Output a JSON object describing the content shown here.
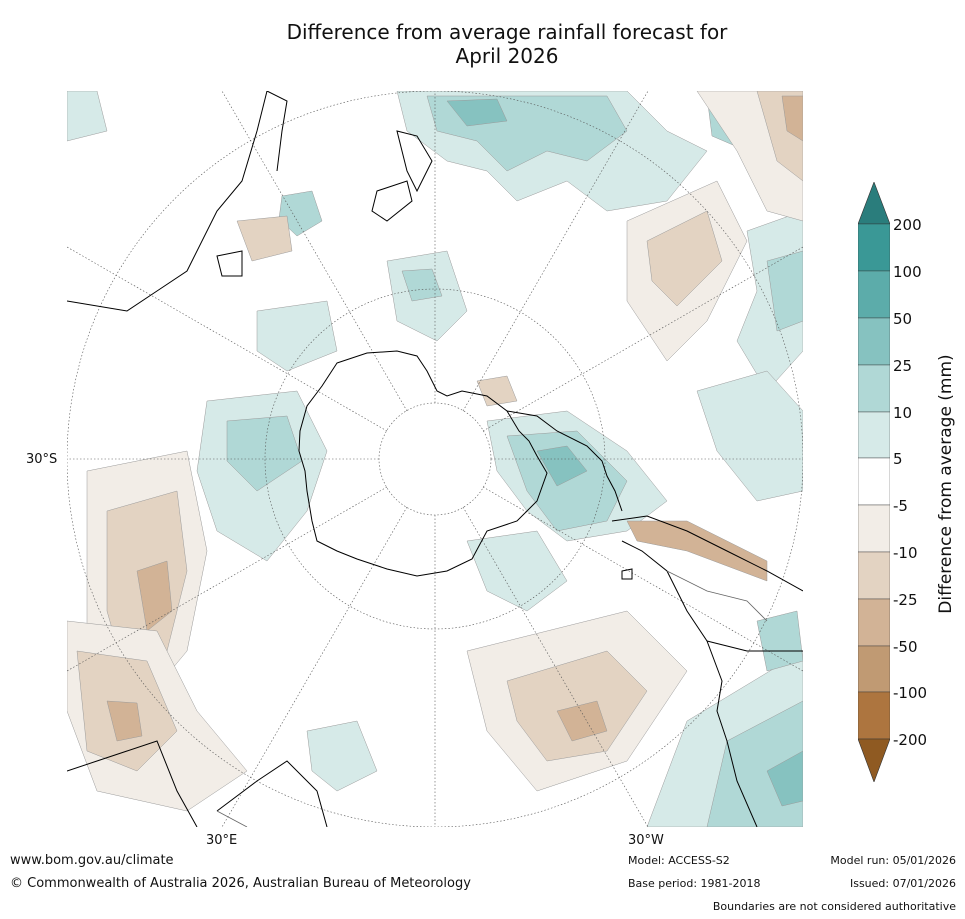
{
  "title_line1": "Difference from average rainfall forecast for",
  "title_line2": "April 2026",
  "map": {
    "lat_label": "30°S",
    "lon_labels": [
      "30°E",
      "30°W"
    ],
    "colors": {
      "wet_200": "#2a7d7c",
      "wet_100": "#3a9896",
      "wet_50": "#5cacaa",
      "wet_25": "#86c2c0",
      "wet_10": "#b0d8d6",
      "wet_5": "#d6eae8",
      "neutral": "#ffffff",
      "dry_5": "#f2ede7",
      "dry_10": "#e3d3c2",
      "dry_25": "#d2b396",
      "dry_50": "#c09a73",
      "dry_100": "#ad753f",
      "dry_200": "#8f5a22",
      "coastline": "#000000",
      "graticule": "#555555"
    }
  },
  "legend": {
    "title": "Difference from average (mm)",
    "ticks": [
      "200",
      "100",
      "50",
      "25",
      "10",
      "5",
      "-5",
      "-10",
      "-25",
      "-50",
      "-100",
      "-200"
    ]
  },
  "footer": {
    "website": "www.bom.gov.au/climate",
    "copyright": "© Commonwealth of Australia 2026, Australian Bureau of Meteorology",
    "model": "Model: ACCESS-S2",
    "base_period": "Base period: 1981-2018",
    "model_run": "Model run: 05/01/2026",
    "issued": "Issued: 07/01/2026",
    "boundaries_note": "Boundaries are not considered authoritative"
  }
}
